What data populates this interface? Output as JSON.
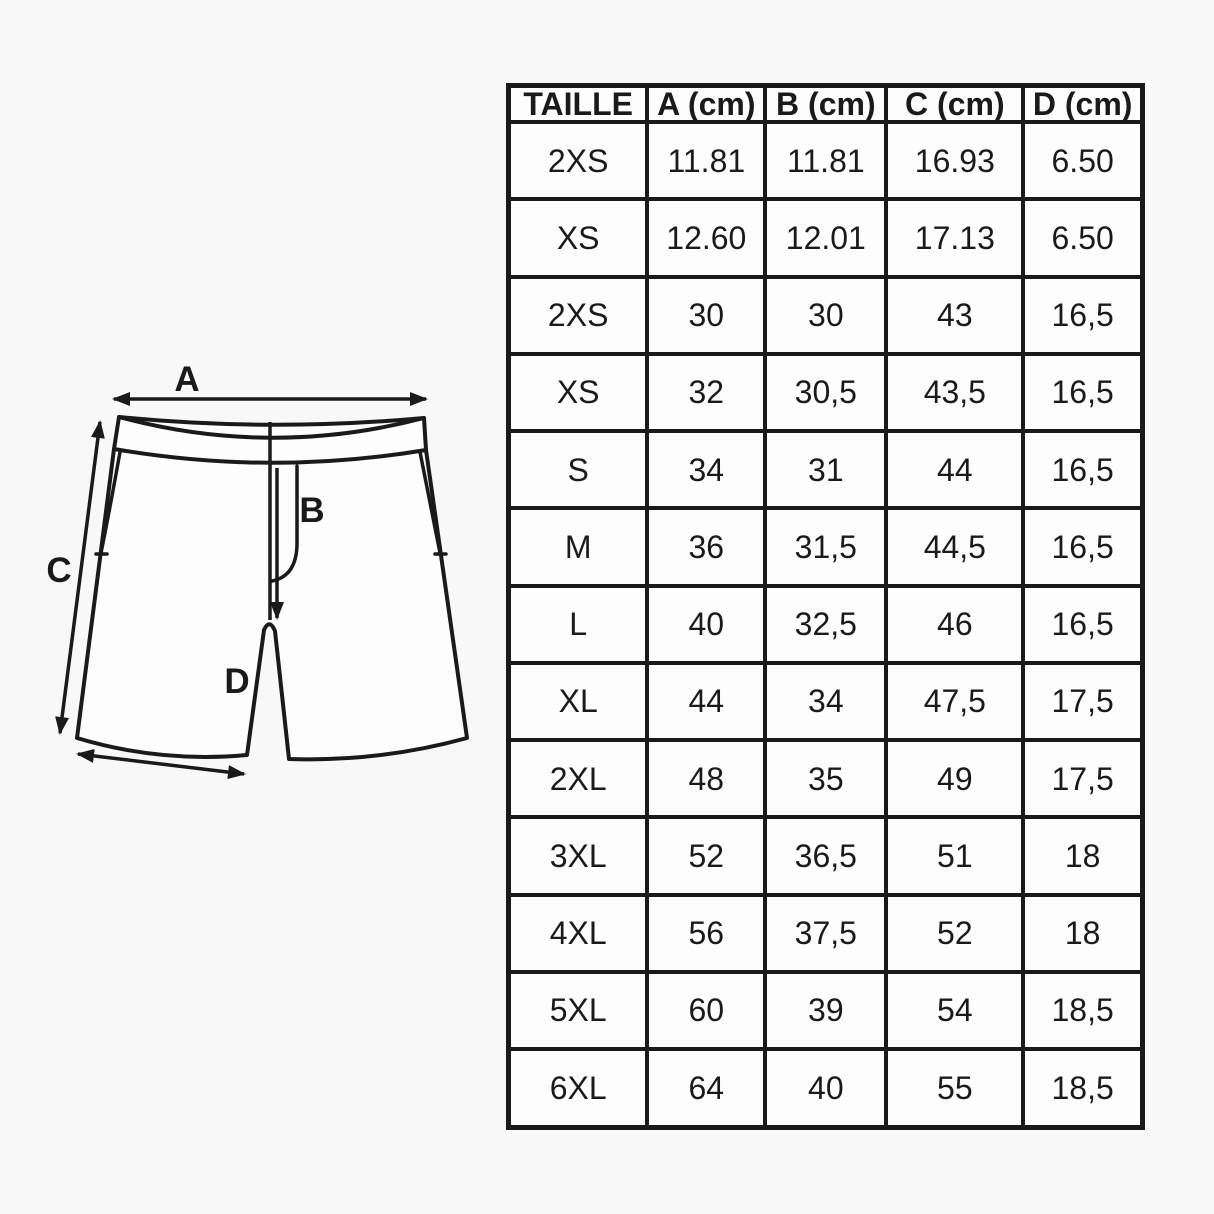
{
  "colors": {
    "background": "#f8f8f8",
    "surface": "#fdfdfd",
    "ink": "#1a1a1a"
  },
  "diagram": {
    "labels": {
      "a": "A",
      "b": "B",
      "c": "C",
      "d": "D"
    }
  },
  "chart_data": {
    "type": "table",
    "columns": [
      "TAILLE",
      "A (cm)",
      "B (cm)",
      "C (cm)",
      "D (cm)"
    ],
    "rows": [
      [
        "2XS",
        "11.81",
        "11.81",
        "16.93",
        "6.50"
      ],
      [
        "XS",
        "12.60",
        "12.01",
        "17.13",
        "6.50"
      ],
      [
        "2XS",
        "30",
        "30",
        "43",
        "16,5"
      ],
      [
        "XS",
        "32",
        "30,5",
        "43,5",
        "16,5"
      ],
      [
        "S",
        "34",
        "31",
        "44",
        "16,5"
      ],
      [
        "M",
        "36",
        "31,5",
        "44,5",
        "16,5"
      ],
      [
        "L",
        "40",
        "32,5",
        "46",
        "16,5"
      ],
      [
        "XL",
        "44",
        "34",
        "47,5",
        "17,5"
      ],
      [
        "2XL",
        "48",
        "35",
        "49",
        "17,5"
      ],
      [
        "3XL",
        "52",
        "36,5",
        "51",
        "18"
      ],
      [
        "4XL",
        "56",
        "37,5",
        "52",
        "18"
      ],
      [
        "5XL",
        "60",
        "39",
        "54",
        "18,5"
      ],
      [
        "6XL",
        "64",
        "40",
        "55",
        "18,5"
      ]
    ]
  }
}
